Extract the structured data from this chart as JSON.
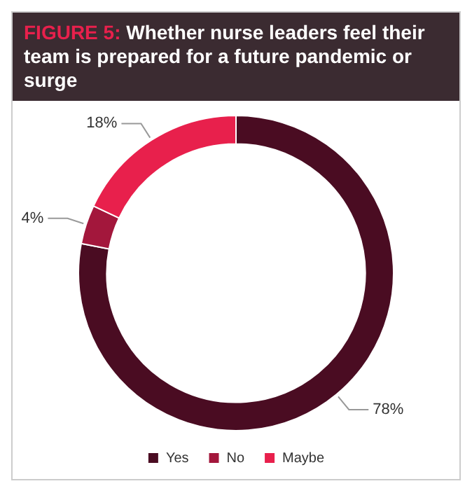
{
  "chart_data": {
    "type": "donut",
    "title": "FIGURE 5: Whether nurse leaders feel their team is prepared for a future pandemic or surge",
    "categories": [
      "Yes",
      "No",
      "Maybe"
    ],
    "values": [
      78,
      4,
      18
    ],
    "colors": [
      "#4a0c22",
      "#a3173c",
      "#e8204c"
    ],
    "value_labels": [
      "78%",
      "4%",
      "18%"
    ],
    "legend": "bottom"
  }
}
